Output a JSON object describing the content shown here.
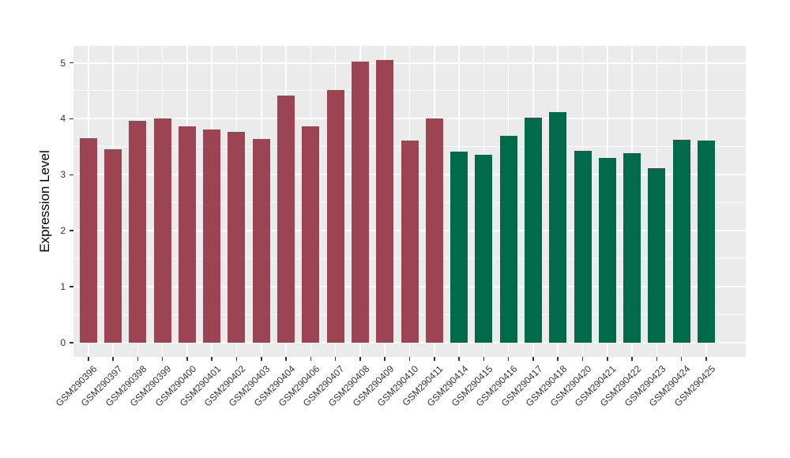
{
  "chart_data": {
    "type": "bar",
    "title": "",
    "xlabel": "",
    "ylabel": "Expression Level",
    "ylim": [
      0,
      5.3
    ],
    "yticks": [
      0,
      1,
      2,
      3,
      4,
      5
    ],
    "minor_gridlines": [
      0.5,
      1.5,
      2.5,
      3.5,
      4.5
    ],
    "grid": "major and minor horizontal white lines plus vertical white line per category on gray panel",
    "legend_position": "none",
    "categories": [
      "GSM290396",
      "GSM290397",
      "GSM290398",
      "GSM290399",
      "GSM290400",
      "GSM290401",
      "GSM290402",
      "GSM290403",
      "GSM290404",
      "GSM290406",
      "GSM290407",
      "GSM290408",
      "GSM290409",
      "GSM290410",
      "GSM290411",
      "GSM290414",
      "GSM290415",
      "GSM290416",
      "GSM290417",
      "GSM290418",
      "GSM290420",
      "GSM290421",
      "GSM290422",
      "GSM290423",
      "GSM290424",
      "GSM290425"
    ],
    "values": [
      3.65,
      3.45,
      3.97,
      4.0,
      3.87,
      3.81,
      3.77,
      3.64,
      4.42,
      3.87,
      4.52,
      5.02,
      5.05,
      3.61,
      4.0,
      3.41,
      3.36,
      3.7,
      4.02,
      4.12,
      3.43,
      3.3,
      3.39,
      3.12,
      3.62,
      3.61
    ],
    "groups": [
      "red",
      "red",
      "red",
      "red",
      "red",
      "red",
      "red",
      "red",
      "red",
      "red",
      "red",
      "red",
      "red",
      "red",
      "red",
      "green",
      "green",
      "green",
      "green",
      "green",
      "green",
      "green",
      "green",
      "green",
      "green",
      "green"
    ],
    "group_colors": {
      "red": "#9C4452",
      "green": "#016A48"
    }
  },
  "styles": {
    "panel_background": "#EBEBEB",
    "gridline_color": "#FFFFFF",
    "tick_label_color": "#333333",
    "axis_title_color": "#000000",
    "page_background": "#FFFFFF"
  }
}
